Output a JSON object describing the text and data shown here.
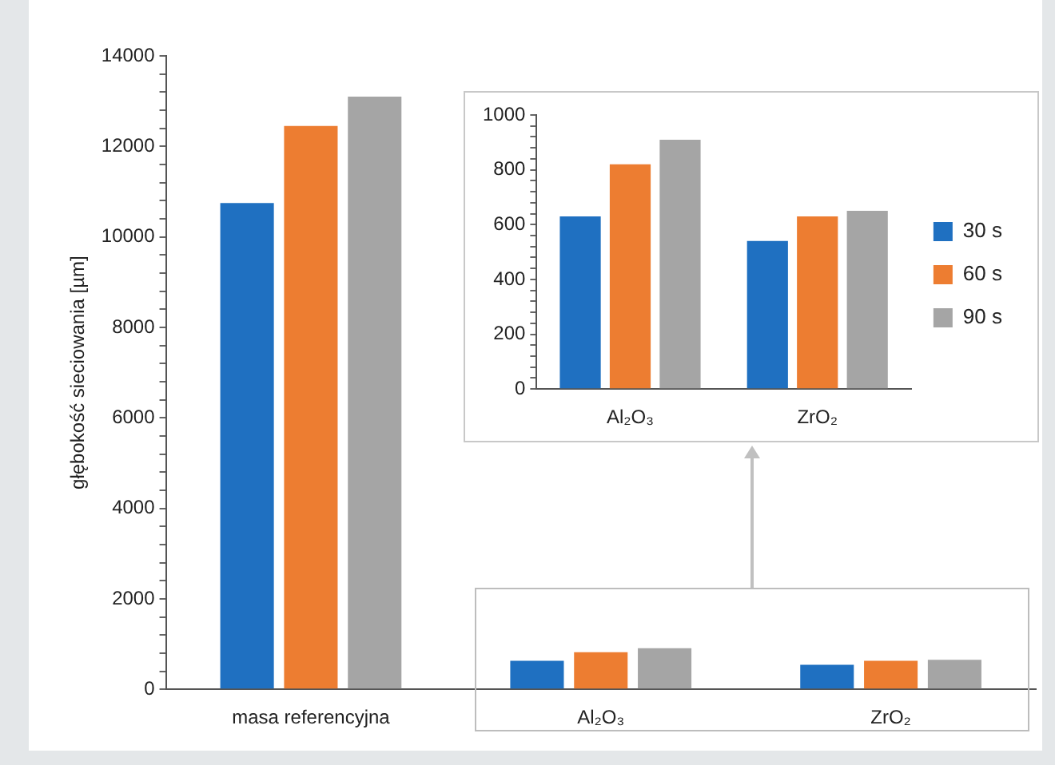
{
  "chart_data": [
    {
      "type": "bar",
      "ylabel": "głębokość sieciowania [µm]",
      "categories": [
        "masa referencyjna",
        "Al₂O₃",
        "ZrO₂"
      ],
      "series": [
        {
          "color": "#1f70c1",
          "values": [
            10750,
            630,
            540
          ]
        },
        {
          "color": "#ed7d31",
          "values": [
            12450,
            820,
            630
          ]
        },
        {
          "color": "#a5a5a5",
          "values": [
            13100,
            910,
            650
          ]
        }
      ],
      "ylim": [
        0,
        14000
      ],
      "yticks": [
        0,
        {
          "value": 400,
          "label": null
        },
        {
          "value": 800,
          "label": null
        },
        {
          "value": 1200,
          "label": null
        },
        {
          "value": 1600,
          "label": null
        },
        2000,
        {
          "value": 2400,
          "label": null
        },
        {
          "value": 2800,
          "label": null
        },
        {
          "value": 3200,
          "label": null
        },
        {
          "value": 3600,
          "label": null
        },
        4000,
        {
          "value": 4400,
          "label": null
        },
        {
          "value": 4800,
          "label": null
        },
        {
          "value": 5200,
          "label": null
        },
        {
          "value": 5600,
          "label": null
        },
        6000,
        {
          "value": 6400,
          "label": null
        },
        {
          "value": 6800,
          "label": null
        },
        {
          "value": 7200,
          "label": null
        },
        {
          "value": 7600,
          "label": null
        },
        8000,
        {
          "value": 8400,
          "label": null
        },
        {
          "value": 8800,
          "label": null
        },
        {
          "value": 9200,
          "label": null
        },
        {
          "value": 9600,
          "label": null
        },
        10000,
        {
          "value": 10400,
          "label": null
        },
        {
          "value": 10800,
          "label": null
        },
        {
          "value": 11200,
          "label": null
        },
        {
          "value": 11600,
          "label": null
        },
        12000,
        {
          "value": 12400,
          "label": null
        },
        {
          "value": 12800,
          "label": null
        },
        {
          "value": 13200,
          "label": null
        },
        {
          "value": 13600,
          "label": null
        },
        14000
      ]
    },
    {
      "type": "bar",
      "categories": [
        "Al₂O₃",
        "ZrO₂"
      ],
      "series": [
        {
          "name": "30 s",
          "color": "#1f70c1",
          "values": [
            630,
            540
          ]
        },
        {
          "name": "60 s",
          "color": "#ed7d31",
          "values": [
            820,
            630
          ]
        },
        {
          "name": "90 s",
          "color": "#a5a5a5",
          "values": [
            910,
            650
          ]
        }
      ],
      "ylim": [
        0,
        1000
      ],
      "yticks": [
        0,
        {
          "value": 40,
          "label": null
        },
        {
          "value": 80,
          "label": null
        },
        {
          "value": 120,
          "label": null
        },
        {
          "value": 160,
          "label": null
        },
        200,
        {
          "value": 240,
          "label": null
        },
        {
          "value": 280,
          "label": null
        },
        {
          "value": 320,
          "label": null
        },
        {
          "value": 360,
          "label": null
        },
        400,
        {
          "value": 440,
          "label": null
        },
        {
          "value": 480,
          "label": null
        },
        {
          "value": 520,
          "label": null
        },
        {
          "value": 560,
          "label": null
        },
        600,
        {
          "value": 640,
          "label": null
        },
        {
          "value": 680,
          "label": null
        },
        {
          "value": 720,
          "label": null
        },
        {
          "value": 760,
          "label": null
        },
        800,
        {
          "value": 840,
          "label": null
        },
        {
          "value": 880,
          "label": null
        },
        {
          "value": 920,
          "label": null
        },
        {
          "value": 960,
          "label": null
        },
        1000
      ],
      "legend": "right"
    }
  ]
}
